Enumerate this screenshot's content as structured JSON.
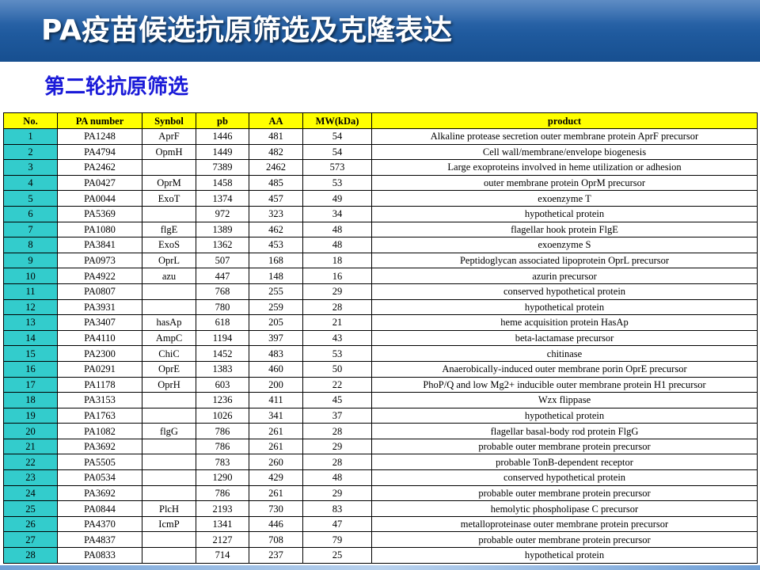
{
  "title": "PA疫苗候选抗原筛选及克隆表达",
  "subtitle": "第二轮抗原筛选",
  "colors": {
    "title_bar": "#1f5a9e",
    "subtitle_text": "#1a1ad8",
    "header_bg": "#ffff00",
    "number_col_bg": "#33cccc"
  },
  "table": {
    "headers": [
      "No.",
      "PA number",
      "Synbol",
      "pb",
      "AA",
      "MW(kDa)",
      "product"
    ],
    "rows": [
      [
        "1",
        "PA1248",
        "AprF",
        "1446",
        "481",
        "54",
        "Alkaline protease secretion outer membrane protein AprF precursor"
      ],
      [
        "2",
        "PA4794",
        "OpmH",
        "1449",
        "482",
        "54",
        "Cell wall/membrane/envelope biogenesis"
      ],
      [
        "3",
        "PA2462",
        "",
        "7389",
        "2462",
        "573",
        "Large exoproteins involved in heme utilization or adhesion"
      ],
      [
        "4",
        "PA0427",
        "OprM",
        "1458",
        "485",
        "53",
        "outer membrane protein OprM precursor"
      ],
      [
        "5",
        "PA0044",
        "ExoT",
        "1374",
        "457",
        "49",
        "exoenzyme T"
      ],
      [
        "6",
        "PA5369",
        "",
        "972",
        "323",
        "34",
        "hypothetical protein"
      ],
      [
        "7",
        "PA1080",
        "flgE",
        "1389",
        "462",
        "48",
        "flagellar hook protein FlgE"
      ],
      [
        "8",
        "PA3841",
        "ExoS",
        "1362",
        "453",
        "48",
        "exoenzyme S"
      ],
      [
        "9",
        "PA0973",
        "OprL",
        "507",
        "168",
        "18",
        "Peptidoglycan associated lipoprotein OprL precursor"
      ],
      [
        "10",
        "PA4922",
        "azu",
        "447",
        "148",
        "16",
        "azurin precursor"
      ],
      [
        "11",
        "PA0807",
        "",
        "768",
        "255",
        "29",
        "conserved hypothetical protein"
      ],
      [
        "12",
        "PA3931",
        "",
        "780",
        "259",
        "28",
        "hypothetical protein"
      ],
      [
        "13",
        "PA3407",
        "hasAp",
        "618",
        "205",
        "21",
        "heme acquisition protein HasAp"
      ],
      [
        "14",
        "PA4110",
        "AmpC",
        "1194",
        "397",
        "43",
        "beta-lactamase precursor"
      ],
      [
        "15",
        "PA2300",
        "ChiC",
        "1452",
        "483",
        "53",
        "chitinase"
      ],
      [
        "16",
        "PA0291",
        "OprE",
        "1383",
        "460",
        "50",
        "Anaerobically-induced outer membrane porin OprE precursor"
      ],
      [
        "17",
        "PA1178",
        "OprH",
        "603",
        "200",
        "22",
        "PhoP/Q and low Mg2+ inducible outer membrane protein H1 precursor"
      ],
      [
        "18",
        "PA3153",
        "",
        "1236",
        "411",
        "45",
        "Wzx flippase"
      ],
      [
        "19",
        "PA1763",
        "",
        "1026",
        "341",
        "37",
        "hypothetical protein"
      ],
      [
        "20",
        "PA1082",
        "flgG",
        "786",
        "261",
        "28",
        "flagellar basal-body rod protein FlgG"
      ],
      [
        "21",
        "PA3692",
        "",
        "786",
        "261",
        "29",
        "probable outer membrane protein precursor"
      ],
      [
        "22",
        "PA5505",
        "",
        "783",
        "260",
        "28",
        "probable TonB-dependent receptor"
      ],
      [
        "23",
        "PA0534",
        "",
        "1290",
        "429",
        "48",
        "conserved hypothetical protein"
      ],
      [
        "24",
        "PA3692",
        "",
        "786",
        "261",
        "29",
        "probable outer membrane protein precursor"
      ],
      [
        "25",
        "PA0844",
        "PlcH",
        "2193",
        "730",
        "83",
        "hemolytic phospholipase C precursor"
      ],
      [
        "26",
        "PA4370",
        "IcmP",
        "1341",
        "446",
        "47",
        "metalloproteinase outer membrane protein precursor"
      ],
      [
        "27",
        "PA4837",
        "",
        "2127",
        "708",
        "79",
        "probable outer membrane protein precursor"
      ],
      [
        "28",
        "PA0833",
        "",
        "714",
        "237",
        "25",
        "hypothetical protein"
      ]
    ]
  }
}
